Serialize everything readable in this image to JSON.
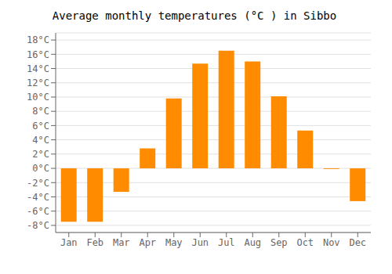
{
  "chart_data": {
    "type": "bar",
    "title": "Average monthly temperatures (°C ) in Sibbo",
    "categories": [
      "Jan",
      "Feb",
      "Mar",
      "Apr",
      "May",
      "Jun",
      "Jul",
      "Aug",
      "Sep",
      "Oct",
      "Nov",
      "Dec"
    ],
    "values": [
      -7.5,
      -7.5,
      -3.3,
      2.8,
      9.8,
      14.7,
      16.5,
      15.0,
      10.1,
      5.3,
      -0.1,
      -4.6
    ],
    "color": "#FF8C00",
    "ylim": [
      -9,
      19
    ],
    "yticks": [
      {
        "value": -8,
        "label": "-8°C"
      },
      {
        "value": -6,
        "label": "-6°C"
      },
      {
        "value": -4,
        "label": "-4°C"
      },
      {
        "value": -2,
        "label": "-2°C"
      },
      {
        "value": 0,
        "label": "0°C"
      },
      {
        "value": 2,
        "label": "2°C"
      },
      {
        "value": 4,
        "label": "4°C"
      },
      {
        "value": 6,
        "label": "6°C"
      },
      {
        "value": 8,
        "label": "8°C"
      },
      {
        "value": 10,
        "label": "10°C"
      },
      {
        "value": 12,
        "label": "12°C"
      },
      {
        "value": 14,
        "label": "14°C"
      },
      {
        "value": 16,
        "label": "16°C"
      },
      {
        "value": 18,
        "label": "18°C"
      }
    ],
    "grid": true
  }
}
